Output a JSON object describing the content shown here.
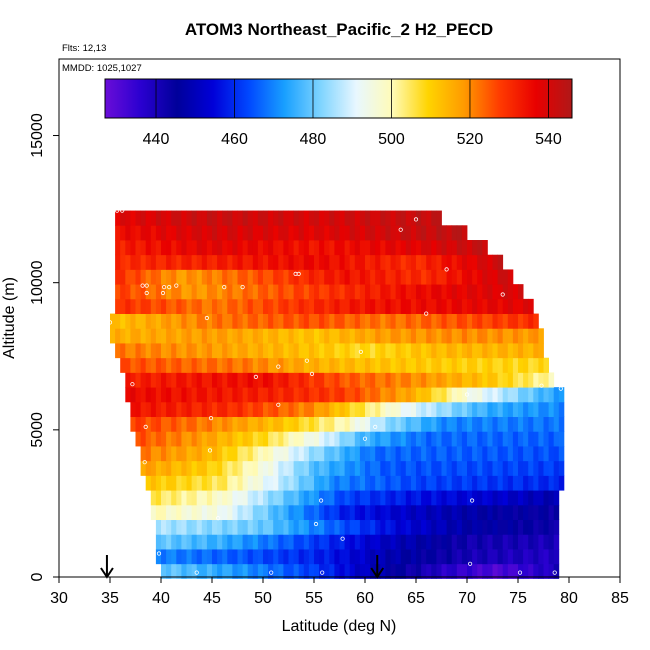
{
  "chart_data": {
    "type": "heatmap",
    "title": "ATOM3 Northeast_Pacific_2 H2_PECD",
    "flights_note": "Flts: 12,13",
    "dates_note": "MMDD: 1025,1027",
    "xlabel": "Latitude (deg N)",
    "ylabel": "Altitude (m)",
    "xlim": [
      30,
      85
    ],
    "ylim": [
      0,
      17600
    ],
    "x_ticks": [
      30,
      35,
      40,
      45,
      50,
      55,
      60,
      65,
      70,
      75,
      80,
      85
    ],
    "y_ticks": [
      0,
      5000,
      10000,
      15000
    ],
    "colorbar": {
      "range": [
        427,
        546
      ],
      "ticks": [
        440,
        460,
        480,
        500,
        520,
        540
      ],
      "colors": [
        "#6a0dd8",
        "#2a00d0",
        "#00009a",
        "#0000d8",
        "#0048ff",
        "#19a0ff",
        "#7fd4ff",
        "#e8f7ff",
        "#fffbb8",
        "#ffd400",
        "#ff9a00",
        "#ff3a00",
        "#e80000",
        "#b01818"
      ]
    },
    "arrows_latitude": [
      34.7,
      61.2
    ],
    "altitude_bands": [
      {
        "alt": 200,
        "lat_start": 40.0,
        "lat_end": 79.0,
        "stops": [
          [
            40,
            480
          ],
          [
            47,
            473
          ],
          [
            55,
            462
          ],
          [
            62,
            447
          ],
          [
            68,
            437
          ],
          [
            73,
            431
          ],
          [
            79,
            440
          ]
        ]
      },
      {
        "alt": 700,
        "lat_start": 39.5,
        "lat_end": 79.0,
        "stops": [
          [
            39.5,
            470
          ],
          [
            48,
            465
          ],
          [
            56,
            458
          ],
          [
            62,
            449
          ],
          [
            70,
            441
          ],
          [
            79,
            438
          ]
        ]
      },
      {
        "alt": 1200,
        "lat_start": 39.5,
        "lat_end": 79.0,
        "stops": [
          [
            39.5,
            480
          ],
          [
            46,
            475
          ],
          [
            55,
            462
          ],
          [
            62,
            451
          ],
          [
            70,
            442
          ],
          [
            79,
            440
          ]
        ]
      },
      {
        "alt": 1700,
        "lat_start": 39.5,
        "lat_end": 79.0,
        "stops": [
          [
            39.5,
            486
          ],
          [
            50,
            480
          ],
          [
            56,
            468
          ],
          [
            63,
            455
          ],
          [
            70,
            447
          ],
          [
            79,
            443
          ]
        ]
      },
      {
        "alt": 2200,
        "lat_start": 39.0,
        "lat_end": 79.0,
        "stops": [
          [
            39,
            500
          ],
          [
            46,
            494
          ],
          [
            52,
            475
          ],
          [
            58,
            458
          ],
          [
            65,
            451
          ],
          [
            72,
            446
          ],
          [
            79,
            444
          ]
        ]
      },
      {
        "alt": 2700,
        "lat_start": 39.0,
        "lat_end": 79.0,
        "stops": [
          [
            39,
            506
          ],
          [
            46,
            498
          ],
          [
            52,
            480
          ],
          [
            58,
            463
          ],
          [
            66,
            456
          ],
          [
            74,
            452
          ],
          [
            79,
            448
          ]
        ]
      },
      {
        "alt": 3200,
        "lat_start": 38.5,
        "lat_end": 79.5,
        "stops": [
          [
            38.5,
            512
          ],
          [
            46,
            505
          ],
          [
            51,
            490
          ],
          [
            57,
            470
          ],
          [
            65,
            463
          ],
          [
            79.5,
            459
          ]
        ]
      },
      {
        "alt": 3700,
        "lat_start": 38.0,
        "lat_end": 79.5,
        "stops": [
          [
            38,
            518
          ],
          [
            45,
            510
          ],
          [
            50,
            496
          ],
          [
            55,
            478
          ],
          [
            62,
            465
          ],
          [
            79.5,
            462
          ]
        ]
      },
      {
        "alt": 4200,
        "lat_start": 38.0,
        "lat_end": 79.5,
        "stops": [
          [
            38,
            522
          ],
          [
            45,
            514
          ],
          [
            50,
            500
          ],
          [
            55,
            484
          ],
          [
            61,
            467
          ],
          [
            79.5,
            464
          ]
        ]
      },
      {
        "alt": 4700,
        "lat_start": 37.5,
        "lat_end": 79.5,
        "stops": [
          [
            37.5,
            526
          ],
          [
            44,
            518
          ],
          [
            50,
            508
          ],
          [
            55,
            494
          ],
          [
            60,
            476
          ],
          [
            66,
            467
          ],
          [
            79.5,
            466
          ]
        ]
      },
      {
        "alt": 5200,
        "lat_start": 37.0,
        "lat_end": 79.5,
        "stops": [
          [
            37,
            528
          ],
          [
            44,
            522
          ],
          [
            52,
            512
          ],
          [
            58,
            500
          ],
          [
            62,
            484
          ],
          [
            68,
            470
          ],
          [
            79.5,
            468
          ]
        ]
      },
      {
        "alt": 5700,
        "lat_start": 37.0,
        "lat_end": 79.5,
        "stops": [
          [
            37,
            534
          ],
          [
            47,
            530
          ],
          [
            55,
            520
          ],
          [
            60,
            505
          ],
          [
            65,
            490
          ],
          [
            72,
            475
          ],
          [
            79.5,
            470
          ]
        ]
      },
      {
        "alt": 6200,
        "lat_start": 36.5,
        "lat_end": 79.5,
        "stops": [
          [
            36.5,
            536
          ],
          [
            50,
            532
          ],
          [
            58,
            528
          ],
          [
            65,
            515
          ],
          [
            70,
            496
          ],
          [
            76,
            480
          ],
          [
            79.5,
            472
          ]
        ]
      },
      {
        "alt": 6700,
        "lat_start": 36.5,
        "lat_end": 78.5,
        "stops": [
          [
            36.5,
            532
          ],
          [
            50,
            535
          ],
          [
            58,
            525
          ],
          [
            65,
            520
          ],
          [
            72,
            512
          ],
          [
            78.5,
            500
          ]
        ]
      },
      {
        "alt": 7200,
        "lat_start": 36.0,
        "lat_end": 78.0,
        "stops": [
          [
            36,
            526
          ],
          [
            48,
            522
          ],
          [
            55,
            515
          ],
          [
            62,
            512
          ],
          [
            70,
            510
          ],
          [
            78,
            508
          ]
        ]
      },
      {
        "alt": 7700,
        "lat_start": 35.5,
        "lat_end": 77.5,
        "stops": [
          [
            35.5,
            522
          ],
          [
            45,
            518
          ],
          [
            55,
            512
          ],
          [
            60,
            508
          ],
          [
            68,
            514
          ],
          [
            77.5,
            515
          ]
        ]
      },
      {
        "alt": 8200,
        "lat_start": 35.0,
        "lat_end": 77.5,
        "stops": [
          [
            35,
            515
          ],
          [
            45,
            518
          ],
          [
            55,
            512
          ],
          [
            62,
            518
          ],
          [
            70,
            520
          ],
          [
            77.5,
            518
          ]
        ]
      },
      {
        "alt": 8700,
        "lat_start": 35.0,
        "lat_end": 77.0,
        "stops": [
          [
            35,
            512
          ],
          [
            45,
            522
          ],
          [
            55,
            526
          ],
          [
            62,
            522
          ],
          [
            70,
            526
          ],
          [
            77,
            530
          ]
        ]
      },
      {
        "alt": 9200,
        "lat_start": 35.5,
        "lat_end": 76.5,
        "stops": [
          [
            35.5,
            530
          ],
          [
            45,
            522
          ],
          [
            52,
            528
          ],
          [
            60,
            534
          ],
          [
            68,
            536
          ],
          [
            76.5,
            538
          ]
        ]
      },
      {
        "alt": 9700,
        "lat_start": 35.5,
        "lat_end": 75.5,
        "stops": [
          [
            35.5,
            528
          ],
          [
            43,
            518
          ],
          [
            50,
            524
          ],
          [
            58,
            530
          ],
          [
            66,
            536
          ],
          [
            75.5,
            540
          ]
        ]
      },
      {
        "alt": 10200,
        "lat_start": 35.5,
        "lat_end": 74.5,
        "stops": [
          [
            35.5,
            530
          ],
          [
            42,
            518
          ],
          [
            50,
            526
          ],
          [
            58,
            534
          ],
          [
            66,
            530
          ],
          [
            74.5,
            542
          ]
        ]
      },
      {
        "alt": 10700,
        "lat_start": 35.5,
        "lat_end": 73.5,
        "stops": [
          [
            35.5,
            530
          ],
          [
            45,
            532
          ],
          [
            55,
            536
          ],
          [
            65,
            530
          ],
          [
            73.5,
            542
          ]
        ]
      },
      {
        "alt": 11200,
        "lat_start": 35.5,
        "lat_end": 72.0,
        "stops": [
          [
            35.5,
            532
          ],
          [
            45,
            538
          ],
          [
            55,
            534
          ],
          [
            65,
            538
          ],
          [
            72,
            543
          ]
        ]
      },
      {
        "alt": 11700,
        "lat_start": 35.5,
        "lat_end": 70.0,
        "stops": [
          [
            35.5,
            535
          ],
          [
            45,
            540
          ],
          [
            55,
            538
          ],
          [
            65,
            542
          ],
          [
            70,
            544
          ]
        ]
      },
      {
        "alt": 12200,
        "lat_start": 35.5,
        "lat_end": 67.5,
        "stops": [
          [
            35.5,
            538
          ],
          [
            45,
            542
          ],
          [
            55,
            540
          ],
          [
            67.5,
            543
          ]
        ]
      }
    ],
    "sample_points": [
      [
        35.7,
        12450
      ],
      [
        36.2,
        12450
      ],
      [
        63.5,
        11800
      ],
      [
        65.0,
        12150
      ],
      [
        53.2,
        10300
      ],
      [
        53.5,
        10300
      ],
      [
        38.2,
        9900
      ],
      [
        38.6,
        9900
      ],
      [
        40.3,
        9850
      ],
      [
        40.8,
        9850
      ],
      [
        41.5,
        9900
      ],
      [
        46.2,
        9850
      ],
      [
        48.0,
        9850
      ],
      [
        38.6,
        9650
      ],
      [
        40.2,
        9650
      ],
      [
        44.5,
        8800
      ],
      [
        35.0,
        8650
      ],
      [
        68.0,
        10450
      ],
      [
        66.0,
        8950
      ],
      [
        73.5,
        9600
      ],
      [
        59.6,
        7650
      ],
      [
        54.3,
        7350
      ],
      [
        51.5,
        7150
      ],
      [
        54.8,
        6900
      ],
      [
        49.3,
        6800
      ],
      [
        37.2,
        6550
      ],
      [
        51.5,
        5850
      ],
      [
        44.9,
        5400
      ],
      [
        38.5,
        5100
      ],
      [
        44.8,
        4300
      ],
      [
        38.4,
        3900
      ],
      [
        60.0,
        4700
      ],
      [
        61.0,
        5100
      ],
      [
        70.0,
        6200
      ],
      [
        79.2,
        6400
      ],
      [
        77.3,
        6500
      ],
      [
        55.7,
        2600
      ],
      [
        70.5,
        2600
      ],
      [
        45.6,
        2000
      ],
      [
        55.2,
        1800
      ],
      [
        57.8,
        1300
      ],
      [
        39.8,
        800
      ],
      [
        70.3,
        450
      ],
      [
        43.5,
        150
      ],
      [
        50.8,
        150
      ],
      [
        55.8,
        150
      ],
      [
        78.6,
        150
      ],
      [
        75.2,
        150
      ]
    ]
  }
}
